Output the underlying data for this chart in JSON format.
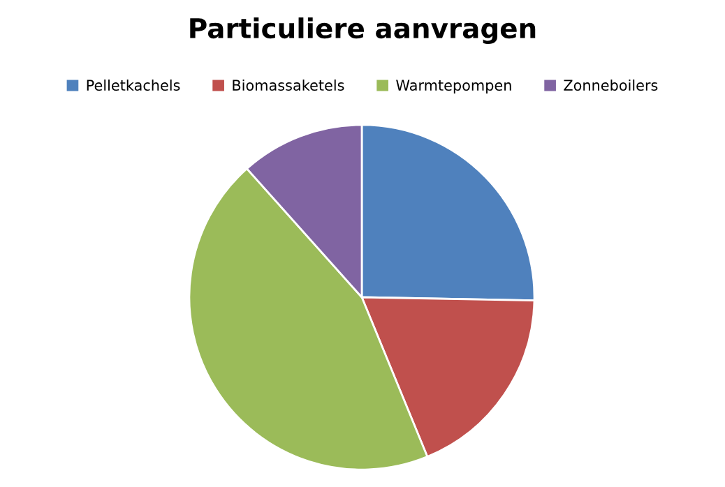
{
  "chart_data": {
    "type": "pie",
    "title": "Particuliere aanvragen",
    "categories": [
      "Pelletkachels",
      "Biomassaketels",
      "Warmtepompen",
      "Zonneboilers"
    ],
    "values": [
      25.3,
      18.5,
      44.6,
      11.6
    ],
    "colors": [
      "#4f81bd",
      "#c0504d",
      "#9bbb59",
      "#8064a2"
    ],
    "legend": "top"
  }
}
